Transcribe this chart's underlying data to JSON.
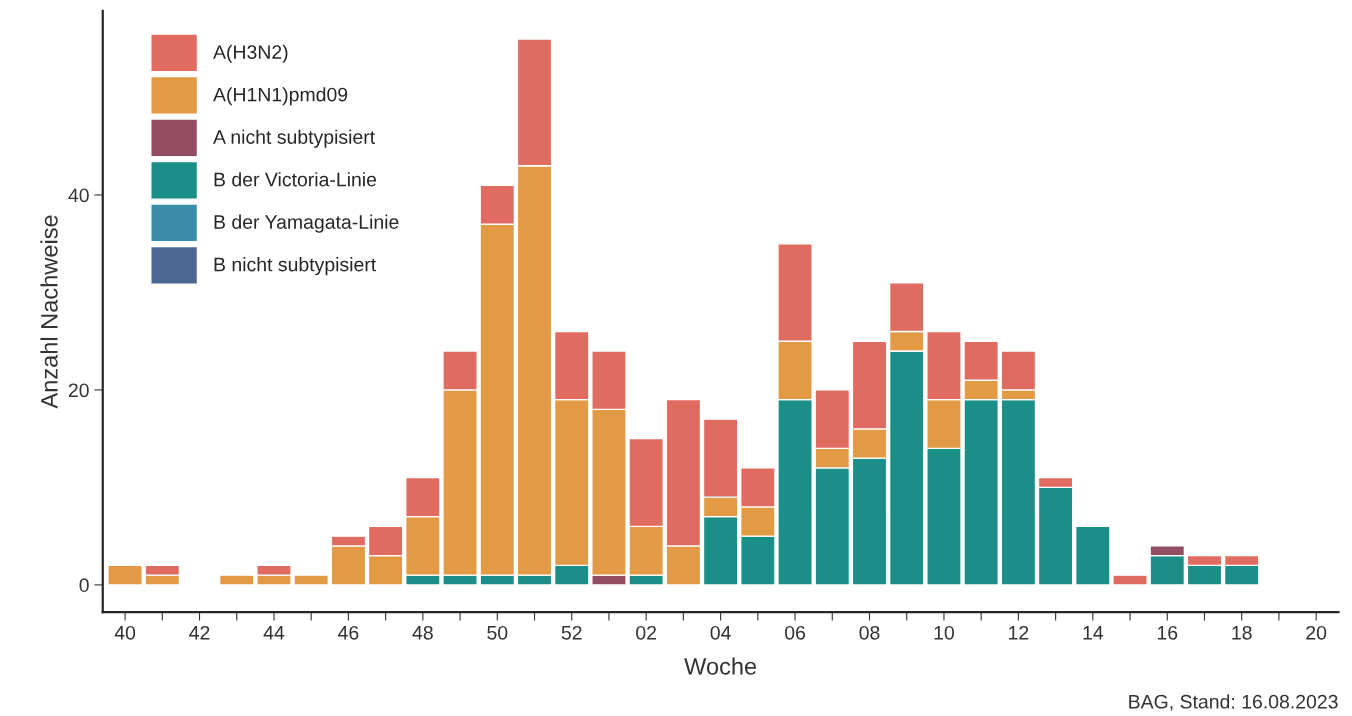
{
  "chart_data": {
    "type": "bar",
    "stacked": true,
    "xlabel": "Woche",
    "ylabel": "Anzahl Nachweise",
    "categories": [
      "40",
      null,
      "42",
      null,
      "44",
      null,
      "46",
      null,
      "48",
      null,
      "50",
      null,
      "52",
      null,
      "02",
      null,
      "04",
      null,
      "06",
      null,
      "08",
      null,
      "10",
      null,
      "12",
      null,
      "14",
      null,
      "16",
      null,
      "18",
      null,
      "20"
    ],
    "series": [
      {
        "name": "B nicht subtypisiert",
        "color": "#4c6791",
        "values": [
          0,
          0,
          0,
          0,
          0,
          0,
          0,
          0,
          0,
          0,
          0,
          0,
          0,
          0,
          0,
          0,
          0,
          0,
          0,
          0,
          0,
          0,
          0,
          0,
          0,
          0,
          0,
          0,
          0,
          0,
          0,
          0,
          0
        ]
      },
      {
        "name": "B der Yamagata-Linie",
        "color": "#3a8cab",
        "values": [
          0,
          0,
          0,
          0,
          0,
          0,
          0,
          0,
          0,
          0,
          0,
          0,
          0,
          0,
          0,
          0,
          0,
          0,
          0,
          0,
          0,
          0,
          0,
          0,
          0,
          0,
          0,
          0,
          0,
          0,
          0,
          0,
          0
        ]
      },
      {
        "name": "B der Victoria-Linie",
        "color": "#1b8f87",
        "values": [
          0,
          0,
          0,
          0,
          0,
          0,
          0,
          0,
          1,
          1,
          1,
          1,
          2,
          0,
          1,
          0,
          7,
          5,
          19,
          12,
          13,
          24,
          14,
          19,
          19,
          10,
          6,
          0,
          3,
          2,
          2,
          0,
          0
        ]
      },
      {
        "name": "A nicht subtypisiert",
        "color": "#934d63",
        "values": [
          0,
          0,
          0,
          0,
          0,
          0,
          0,
          0,
          0,
          0,
          0,
          0,
          0,
          1,
          0,
          0,
          0,
          0,
          0,
          0,
          0,
          0,
          0,
          0,
          0,
          0,
          0,
          0,
          1,
          0,
          0,
          0,
          0
        ]
      },
      {
        "name": "A(H1N1)pmd09",
        "color": "#e29a44",
        "values": [
          2,
          1,
          0,
          1,
          1,
          1,
          4,
          3,
          6,
          19,
          36,
          42,
          17,
          17,
          5,
          4,
          2,
          3,
          6,
          2,
          3,
          2,
          5,
          2,
          1,
          0,
          0,
          0,
          0,
          0,
          0,
          0,
          0
        ]
      },
      {
        "name": "A(H3N2)",
        "color": "#e06b60",
        "values": [
          0,
          1,
          0,
          0,
          1,
          0,
          1,
          3,
          4,
          4,
          4,
          13,
          7,
          6,
          9,
          15,
          8,
          4,
          10,
          6,
          9,
          5,
          7,
          4,
          4,
          1,
          0,
          1,
          0,
          1,
          1,
          0,
          0
        ]
      }
    ],
    "ylim": [
      -2.8,
      58.9
    ],
    "yticks": [
      0,
      20,
      40
    ],
    "grid": false,
    "legend": "top left",
    "annotations": [
      "BAG, Stand: 16.08.2023"
    ]
  }
}
